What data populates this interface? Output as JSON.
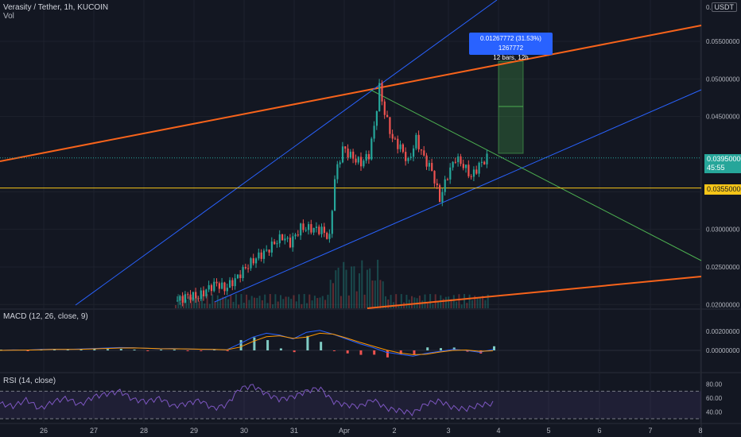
{
  "header": {
    "symbol_title": "Verasity / Tether, 1h, KUCOIN",
    "volume_label": "Vol",
    "currency": "USDT",
    "top_tick": "0.0600000"
  },
  "tooltip": {
    "line1": "0.01267772 (31.53%) 1267772",
    "line2": "12 bars, 12h"
  },
  "badges": {
    "last_price": "0.03950000",
    "countdown": "45:55",
    "level_price": "0.03550000",
    "last_price_color": "#26a69a",
    "level_color": "#f5c518"
  },
  "macd": {
    "label": "MACD (12, 26, close, 9)",
    "ticks": [
      "0.00200000",
      "0.00000000"
    ]
  },
  "rsi": {
    "label": "RSI (14, close)",
    "ticks": [
      "80.00",
      "60.00",
      "40.00"
    ]
  },
  "chart_data": {
    "type": "candlestick",
    "price_axis": {
      "ticks": [
        "0.05500000",
        "0.05000000",
        "0.04500000",
        "0.03500000",
        "0.03000000",
        "0.02500000",
        "0.02000000"
      ],
      "ylim": [
        0.0195,
        0.0605
      ]
    },
    "time_axis": [
      "26",
      "27",
      "28",
      "29",
      "30",
      "31",
      "Apr",
      "2",
      "3",
      "4",
      "5",
      "6",
      "7",
      "8"
    ],
    "horizontal_level": 0.0355,
    "last_price": 0.0395,
    "colors": {
      "up": "#26a69a",
      "down": "#ef5350",
      "trend_orange": "#f7631b",
      "trend_blue": "#2962ff",
      "trend_green": "#4caf50"
    },
    "price_path": [
      [
        0,
        0.0205
      ],
      [
        4,
        0.0212
      ],
      [
        8,
        0.021
      ],
      [
        12,
        0.0222
      ],
      [
        15,
        0.0228
      ],
      [
        18,
        0.0221
      ],
      [
        22,
        0.0233
      ],
      [
        26,
        0.0249
      ],
      [
        30,
        0.0262
      ],
      [
        34,
        0.0271
      ],
      [
        37,
        0.0282
      ],
      [
        40,
        0.029
      ],
      [
        43,
        0.0282
      ],
      [
        47,
        0.0302
      ],
      [
        51,
        0.0301
      ],
      [
        55,
        0.0299
      ],
      [
        58,
        0.0288
      ],
      [
        60,
        0.0368
      ],
      [
        63,
        0.0408
      ],
      [
        67,
        0.0395
      ],
      [
        70,
        0.0388
      ],
      [
        73,
        0.0399
      ],
      [
        75,
        0.0436
      ],
      [
        77,
        0.0489
      ],
      [
        79,
        0.0455
      ],
      [
        82,
        0.042
      ],
      [
        85,
        0.0409
      ],
      [
        88,
        0.0389
      ],
      [
        91,
        0.042
      ],
      [
        94,
        0.0395
      ],
      [
        97,
        0.0378
      ],
      [
        100,
        0.034
      ],
      [
        103,
        0.0372
      ],
      [
        106,
        0.0395
      ],
      [
        109,
        0.0385
      ],
      [
        112,
        0.037
      ],
      [
        115,
        0.0385
      ],
      [
        118,
        0.0395
      ]
    ],
    "macd_series": [
      0,
      5e-05,
      3e-05,
      0.0001,
      0.00012,
      0.0001,
      0.00015,
      0.0002,
      0.00025,
      0.0003,
      0.00028,
      0.00022,
      0.00018,
      0.0002,
      0.00015,
      0.00012,
      0.0001,
      5e-05,
      0.0007,
      0.0014,
      0.0018,
      0.0016,
      0.0012,
      0.0019,
      0.0021,
      0.0017,
      0.0012,
      0.0007,
      0.0003,
      -0.0002,
      -0.0004,
      -0.0006,
      -0.0003,
      -0.0001,
      0.0001,
      0.0,
      -0.0002,
      0.0001
    ],
    "rsi_series": [
      52,
      48,
      58,
      44,
      55,
      60,
      50,
      62,
      66,
      70,
      58,
      55,
      60,
      48,
      52,
      57,
      45,
      50,
      74,
      78,
      66,
      58,
      62,
      70,
      75,
      55,
      50,
      48,
      58,
      45,
      42,
      38,
      52,
      56,
      46,
      44,
      50,
      52
    ]
  }
}
